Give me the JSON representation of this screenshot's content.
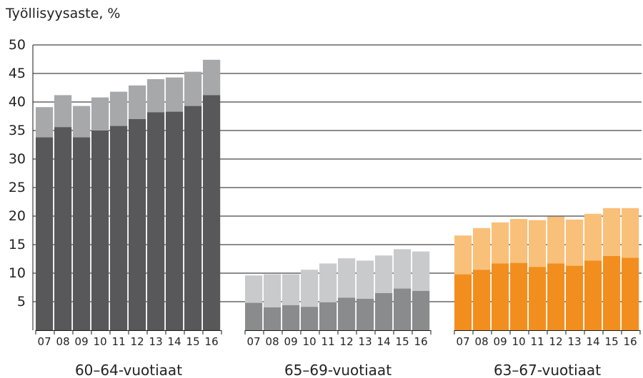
{
  "chart_data": {
    "type": "bar",
    "title": "Työllisyysaste, %",
    "ylim": [
      0,
      50
    ],
    "yticks": [
      5,
      10,
      15,
      20,
      25,
      30,
      35,
      40,
      45,
      50
    ],
    "grid": true,
    "categories": [
      "07",
      "08",
      "09",
      "10",
      "11",
      "12",
      "13",
      "14",
      "15",
      "16"
    ],
    "groups": [
      {
        "label": "60–64-vuotiaat",
        "colors": {
          "lower": "#58585a",
          "upper": "#a7a8aa"
        },
        "lower": [
          33.8,
          35.6,
          33.8,
          35.0,
          35.8,
          37.0,
          38.2,
          38.3,
          39.3,
          41.2
        ],
        "total": [
          39.1,
          41.2,
          39.3,
          40.8,
          41.8,
          42.9,
          44.0,
          44.3,
          45.3,
          47.4
        ]
      },
      {
        "label": "65–69-vuotiaat",
        "colors": {
          "lower": "#8a8b8d",
          "upper": "#c9cacc"
        },
        "lower": [
          4.8,
          4.0,
          4.4,
          4.1,
          4.9,
          5.7,
          5.5,
          6.5,
          7.3,
          6.9
        ],
        "total": [
          9.6,
          9.8,
          9.8,
          10.6,
          11.7,
          12.6,
          12.2,
          13.1,
          14.2,
          13.8
        ]
      },
      {
        "label": "63–67-vuotiaat",
        "colors": {
          "lower": "#f28e1e",
          "upper": "#f9c07a"
        },
        "lower": [
          9.8,
          10.6,
          11.7,
          11.8,
          11.1,
          11.7,
          11.3,
          12.2,
          13.0,
          12.7
        ],
        "total": [
          16.6,
          17.9,
          18.9,
          19.5,
          19.3,
          19.9,
          19.4,
          20.4,
          21.4,
          21.4
        ]
      }
    ]
  }
}
